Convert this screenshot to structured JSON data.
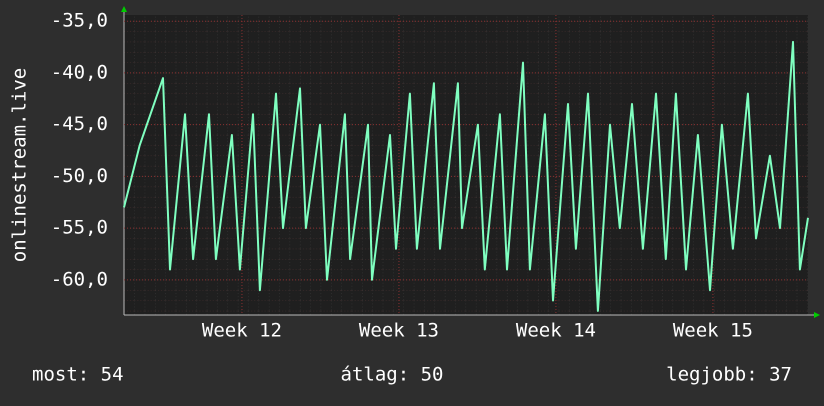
{
  "chart_data": {
    "type": "line",
    "y_label": "onlinestream.live",
    "x": [
      0,
      0.7,
      1.74,
      2.05,
      2.72,
      3.08,
      3.79,
      4.1,
      4.81,
      5.17,
      5.75,
      6.06,
      6.78,
      7.09,
      7.85,
      8.11,
      8.74,
      9.05,
      9.85,
      10.08,
      10.88,
      11.06,
      11.86,
      12.13,
      12.75,
      13.06,
      13.82,
      14.09,
      14.89,
      15.07,
      15.78,
      16.09,
      16.76,
      17.08,
      17.79,
      18.1,
      18.77,
      19.13,
      19.8,
      20.15,
      20.69,
      21.13,
      21.67,
      22.11,
      22.65,
      23.14,
      23.72,
      24.16,
      24.61,
      25.06,
      25.59,
      26.13,
      26.66,
      27.15,
      27.82,
      28.18,
      28.8,
      29.25,
      29.83,
      30.14,
      30.5
    ],
    "series": [
      {
        "color": "#7fffc0",
        "values": [
          -53,
          -47,
          -40.5,
          -59,
          -44,
          -58,
          -44,
          -58,
          -46,
          -59,
          -44,
          -61,
          -42,
          -55,
          -41.5,
          -55,
          -45,
          -60,
          -44,
          -58,
          -45,
          -60,
          -46,
          -57,
          -42,
          -57,
          -41,
          -57,
          -41,
          -55,
          -45,
          -59,
          -44,
          -59,
          -39,
          -59,
          -44,
          -62,
          -43,
          -57,
          -42,
          -63,
          -45,
          -55,
          -43,
          -57,
          -42,
          -58,
          -42,
          -59,
          -46,
          -61,
          -45,
          -57,
          -42,
          -56,
          -48,
          -55,
          -37,
          -59,
          -54
        ]
      }
    ],
    "xlim": [
      0,
      30.5
    ],
    "xticks": [
      {
        "value": 5.26,
        "label": "Week 12"
      },
      {
        "value": 12.26,
        "label": "Week 13"
      },
      {
        "value": 19.26,
        "label": "Week 14"
      },
      {
        "value": 26.26,
        "label": "Week 15"
      }
    ],
    "ylim": [
      -63.4,
      -34.4
    ],
    "yticks": [
      {
        "value": -35,
        "label": "-35,0"
      },
      {
        "value": -40,
        "label": "-40,0"
      },
      {
        "value": -45,
        "label": "-45,0"
      },
      {
        "value": -50,
        "label": "-50,0"
      },
      {
        "value": -55,
        "label": "-55,0"
      },
      {
        "value": -60,
        "label": "-60,0"
      }
    ],
    "grid": true,
    "footer": {
      "current": "most: 54",
      "average": "átlag: 50",
      "best": "legjobb: 37"
    }
  }
}
